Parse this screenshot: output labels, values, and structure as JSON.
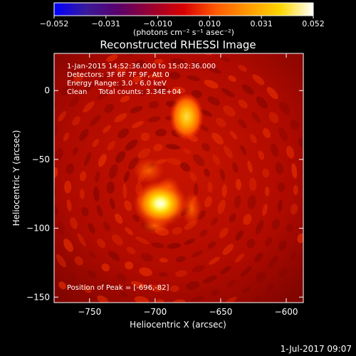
{
  "colorbar": {
    "ticks": [
      "-0.052",
      "-0.031",
      "-0.010",
      "0.010",
      "0.031",
      "0.052"
    ],
    "units": "(photons cm⁻² s⁻¹ asec⁻²)",
    "min": -0.052,
    "max": 0.052,
    "stops": [
      "#0000ff",
      "#3a1a9a",
      "#5a006a",
      "#9a0030",
      "#d80000",
      "#ff5a00",
      "#ff9a00",
      "#ffd800",
      "#ffffff"
    ]
  },
  "chart_data": {
    "type": "heatmap",
    "title": "Reconstructed RHESSI Image",
    "xlabel": "Heliocentric X (arcsec)",
    "ylabel": "Heliocentric Y (arcsec)",
    "xlim": [
      -777,
      -587
    ],
    "ylim": [
      -154,
      27
    ],
    "xticks": [
      {
        "value": -750,
        "label": "−750"
      },
      {
        "value": -700,
        "label": "−700"
      },
      {
        "value": -650,
        "label": "−650"
      },
      {
        "value": -600,
        "label": "−600"
      }
    ],
    "yticks": [
      {
        "value": 0,
        "label": "0"
      },
      {
        "value": -50,
        "label": "−50"
      },
      {
        "value": -100,
        "label": "−100"
      },
      {
        "value": -150,
        "label": "−150"
      }
    ],
    "sources": [
      {
        "x": -696,
        "y": -82,
        "relative_intensity": 1.0
      },
      {
        "x": -676,
        "y": -19,
        "relative_intensity": 0.8
      }
    ],
    "annotations": [
      "1-Jan-2015 14:52:36.000 to 15:02:36.000",
      "Detectors: 3F 6F 7F 9F, Att 0",
      "Energy Range: 3.0 - 6.0 keV",
      "Clean     Total counts: 3.34E+04"
    ],
    "peak_text": "Position of Peak = [-696,-82]"
  },
  "footer": {
    "timestamp": "1-Jul-2017 09:07"
  }
}
